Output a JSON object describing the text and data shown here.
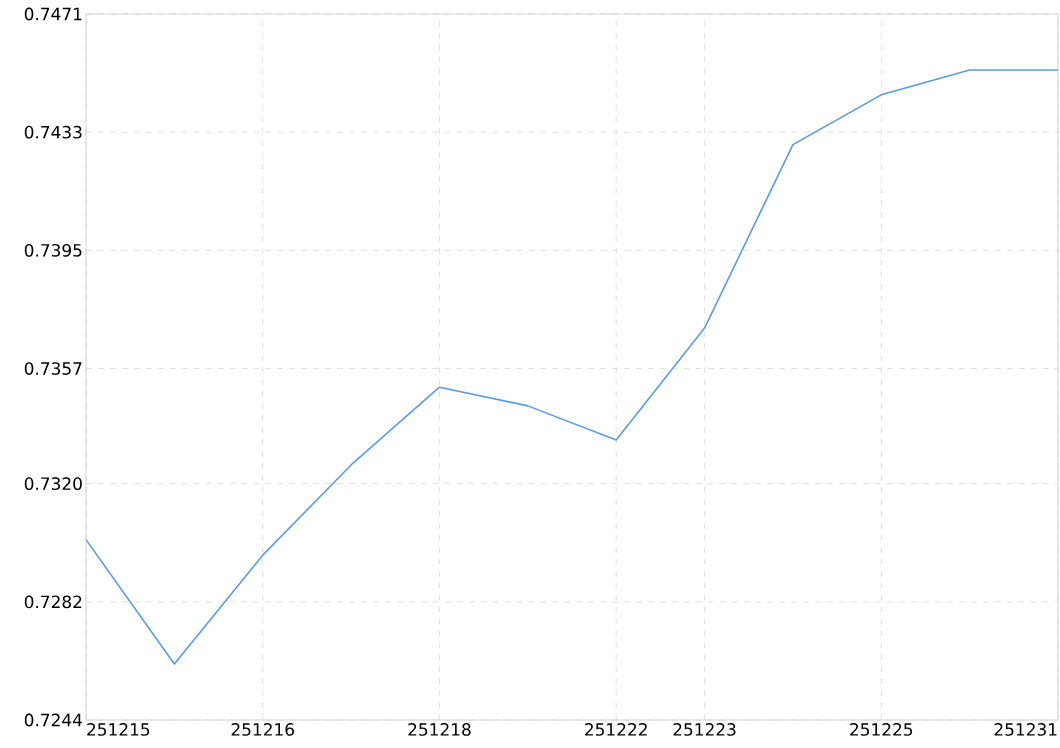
{
  "chart_data": {
    "type": "line",
    "categories": [
      "251215",
      null,
      "251216",
      null,
      "251218",
      null,
      "251222",
      "251223",
      null,
      "251225",
      null,
      "251231"
    ],
    "values": [
      0.7302,
      0.7262,
      0.7297,
      0.7326,
      0.7351,
      0.7345,
      0.7334,
      0.737,
      0.7429,
      0.7445,
      0.7453,
      0.7453
    ],
    "color": "#5b9be6",
    "ylim": [
      0.7244,
      0.7471
    ],
    "yticks": [
      0.7244,
      0.7282,
      {
        "value": 0.732,
        "label": "0.7320"
      },
      0.7357,
      0.7395,
      0.7433,
      0.7471
    ],
    "grid": true,
    "marker": "none",
    "line_style": "solid"
  }
}
